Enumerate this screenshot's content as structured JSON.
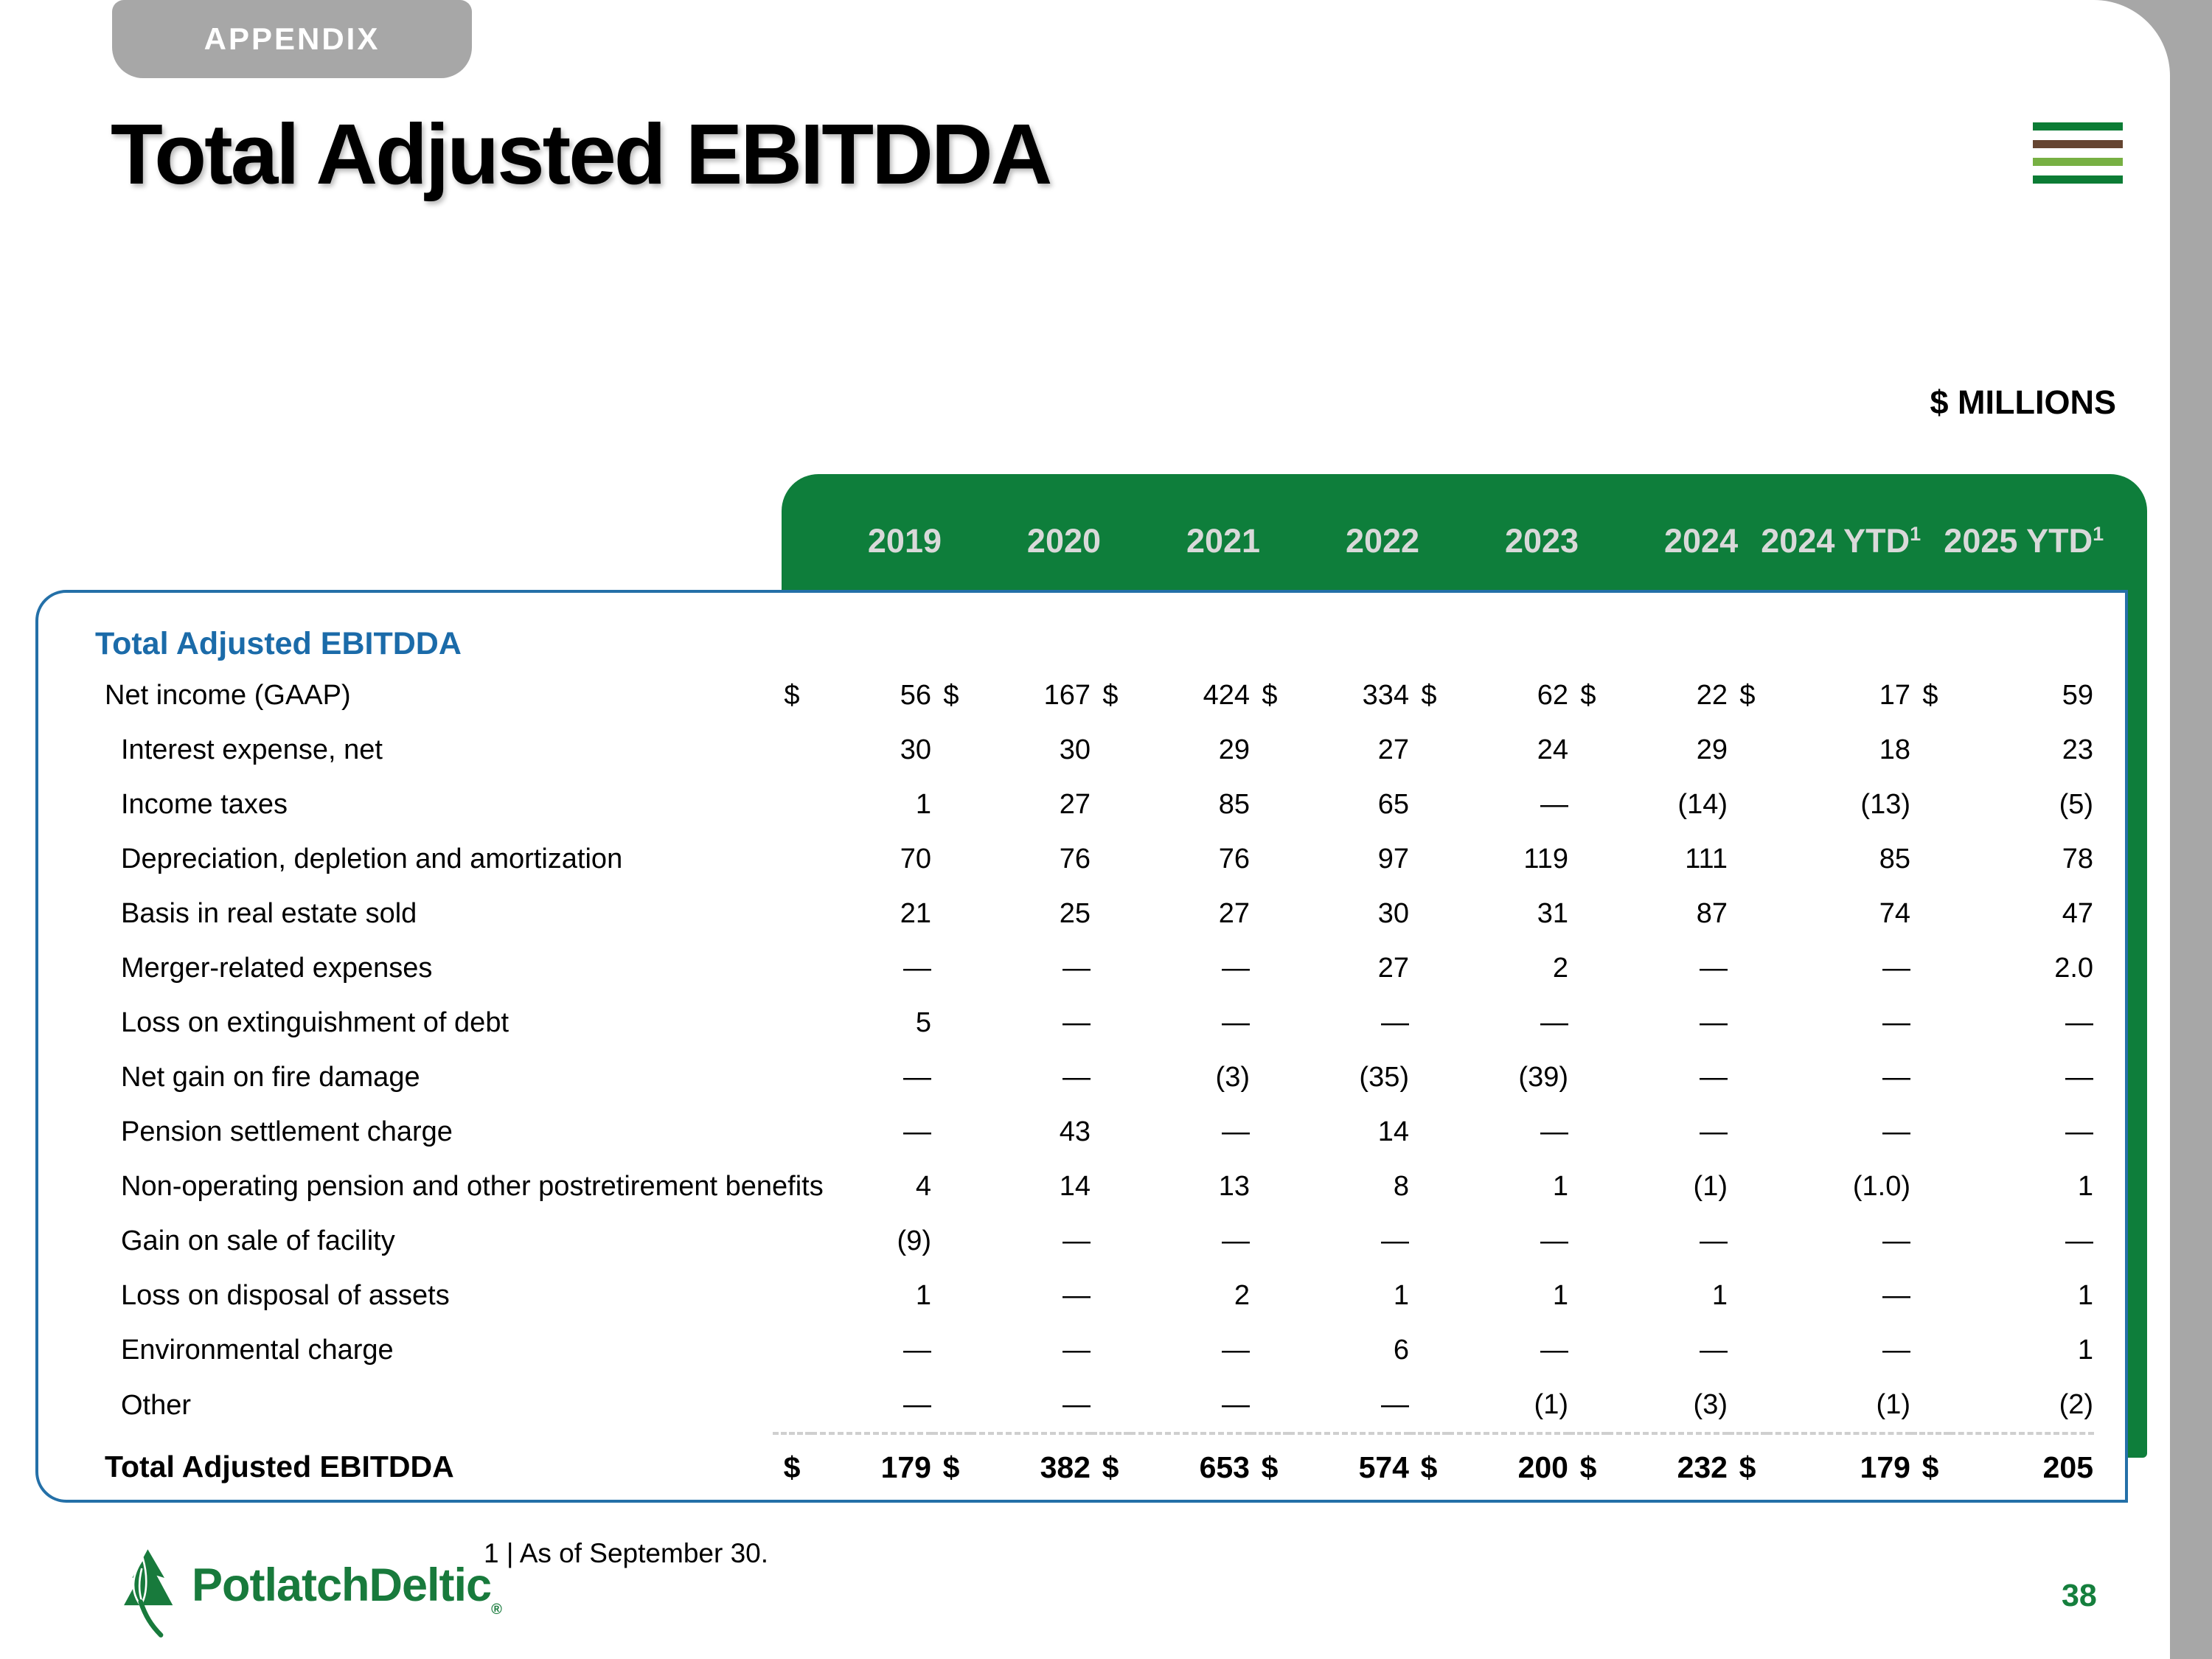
{
  "slide": {
    "tab_label": "APPENDIX",
    "title": "Total Adjusted EBITDDA",
    "units_label": "$ MILLIONS",
    "footnote": "1 | As of September 30.",
    "page_number": "38",
    "logo_text": "PotlatchDeltic",
    "logo_reg_mark": "®"
  },
  "colors": {
    "header_green": "#0E7E3B",
    "header_text": "#D9D9D9",
    "brand_green_dark": "#0C7C35",
    "brand_green_light": "#77B043",
    "brand_brown": "#654531",
    "accent_blue": "#2470A8",
    "section_blue": "#1B6BA9",
    "tab_gray": "#A7A7A7",
    "logo_green": "#187A3C",
    "page_num_green": "#157F3D"
  },
  "table": {
    "section_header": "Total Adjusted EBITDDA",
    "columns": [
      {
        "label": "2019",
        "sup": ""
      },
      {
        "label": "2020",
        "sup": ""
      },
      {
        "label": "2021",
        "sup": ""
      },
      {
        "label": "2022",
        "sup": ""
      },
      {
        "label": "2023",
        "sup": ""
      },
      {
        "label": "2024",
        "sup": ""
      },
      {
        "label": "2024 YTD",
        "sup": "1"
      },
      {
        "label": "2025 YTD",
        "sup": "1"
      }
    ],
    "rows": [
      {
        "label": "Net income (GAAP)",
        "indent": 1,
        "dollar": true,
        "values": [
          "56",
          "167",
          "424",
          "334",
          "62",
          "22",
          "17",
          "59"
        ]
      },
      {
        "label": "Interest expense, net",
        "indent": 2,
        "dollar": false,
        "values": [
          "30",
          "30",
          "29",
          "27",
          "24",
          "29",
          "18",
          "23"
        ]
      },
      {
        "label": "Income taxes",
        "indent": 2,
        "dollar": false,
        "values": [
          "1",
          "27",
          "85",
          "65",
          "—",
          "(14)",
          "(13)",
          "(5)"
        ]
      },
      {
        "label": "Depreciation, depletion and amortization",
        "indent": 2,
        "dollar": false,
        "values": [
          "70",
          "76",
          "76",
          "97",
          "119",
          "111",
          "85",
          "78"
        ]
      },
      {
        "label": "Basis in real estate sold",
        "indent": 2,
        "dollar": false,
        "values": [
          "21",
          "25",
          "27",
          "30",
          "31",
          "87",
          "74",
          "47"
        ]
      },
      {
        "label": "Merger-related expenses",
        "indent": 2,
        "dollar": false,
        "values": [
          "—",
          "—",
          "—",
          "27",
          "2",
          "—",
          "—",
          "2.0"
        ]
      },
      {
        "label": "Loss on extinguishment of debt",
        "indent": 2,
        "dollar": false,
        "values": [
          "5",
          "—",
          "—",
          "—",
          "—",
          "—",
          "—",
          "—"
        ]
      },
      {
        "label": "Net gain on fire damage",
        "indent": 2,
        "dollar": false,
        "values": [
          "—",
          "—",
          "(3)",
          "(35)",
          "(39)",
          "—",
          "—",
          "—"
        ]
      },
      {
        "label": "Pension settlement charge",
        "indent": 2,
        "dollar": false,
        "values": [
          "—",
          "43",
          "—",
          "14",
          "—",
          "—",
          "—",
          "—"
        ]
      },
      {
        "label": "Non-operating pension and other postretirement benefits",
        "indent": 2,
        "dollar": false,
        "values": [
          "4",
          "14",
          "13",
          "8",
          "1",
          "(1)",
          "(1.0)",
          "1"
        ]
      },
      {
        "label": "Gain on sale of facility",
        "indent": 2,
        "dollar": false,
        "values": [
          "(9)",
          "—",
          "—",
          "—",
          "—",
          "—",
          "—",
          "—"
        ]
      },
      {
        "label": "Loss on disposal of assets",
        "indent": 2,
        "dollar": false,
        "values": [
          "1",
          "—",
          "2",
          "1",
          "1",
          "1",
          "—",
          "1"
        ]
      },
      {
        "label": "Environmental charge",
        "indent": 2,
        "dollar": false,
        "values": [
          "—",
          "—",
          "—",
          "6",
          "—",
          "—",
          "—",
          "1"
        ]
      },
      {
        "label": "Other",
        "indent": 2,
        "dollar": false,
        "values": [
          "—",
          "—",
          "—",
          "—",
          "(1)",
          "(3)",
          "(1)",
          "(2)"
        ]
      }
    ],
    "total_row": {
      "label": "Total Adjusted EBITDDA",
      "dollar": true,
      "values": [
        "179",
        "382",
        "653",
        "574",
        "200",
        "232",
        "179",
        "205"
      ]
    }
  }
}
